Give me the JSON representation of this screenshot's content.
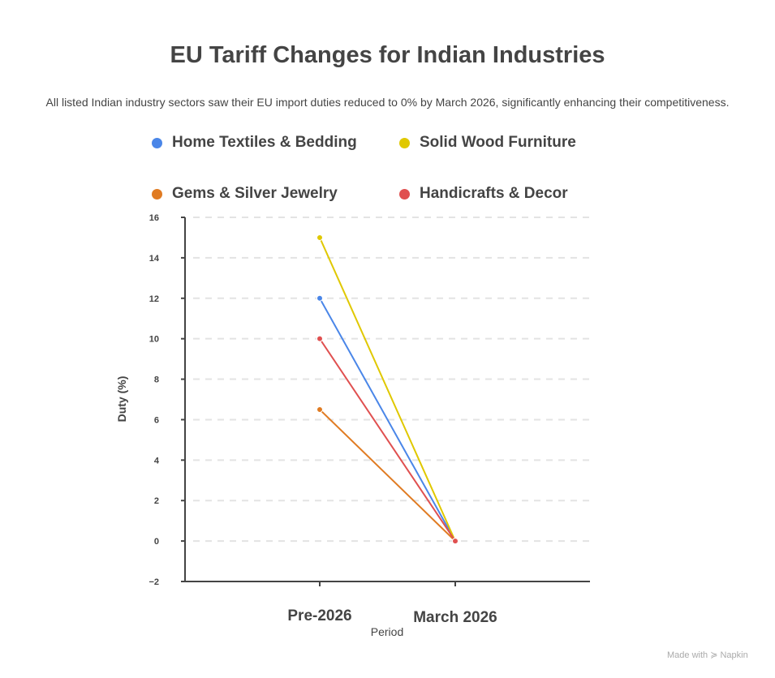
{
  "chart_data": {
    "type": "line",
    "title": "EU Tariff Changes for Indian Industries",
    "subtitle": "All listed Indian industry sectors saw their EU import duties reduced to 0% by March 2026, significantly enhancing their competitiveness.",
    "xlabel": "Period",
    "ylabel": "Duty (%)",
    "categories": [
      "Pre-2026",
      "March 2026"
    ],
    "ylim": [
      -2,
      16
    ],
    "yticks": [
      -2,
      0,
      2,
      4,
      6,
      8,
      10,
      12,
      14,
      16
    ],
    "grid": true,
    "legend_placement": "top",
    "series": [
      {
        "name": "Home Textiles & Bedding",
        "color": "#4a86e8",
        "values": [
          12,
          0
        ]
      },
      {
        "name": "Solid Wood Furniture",
        "color": "#e0c800",
        "values": [
          15,
          0
        ]
      },
      {
        "name": "Gems & Silver Jewelry",
        "color": "#e07b22",
        "values": [
          6.5,
          0
        ]
      },
      {
        "name": "Handicrafts & Decor",
        "color": "#e05050",
        "values": [
          10,
          0
        ]
      }
    ]
  },
  "credit": "Made with ≽ Napkin"
}
